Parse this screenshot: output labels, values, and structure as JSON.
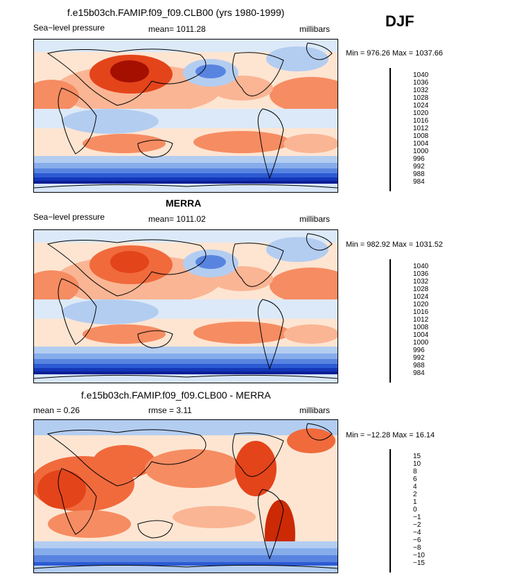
{
  "season": "DJF",
  "panels": [
    {
      "title": "f.e15b03ch.FAMIP.f09_f09.CLB00 (yrs 1980-1999)",
      "left": "Sea−level pressure",
      "center": "mean= 1011.28",
      "right": "millibars",
      "minmax": "Min = 976.26 Max = 1037.66",
      "scale": "slp",
      "colorbar": {
        "labels": [
          "1040",
          "1036",
          "1032",
          "1028",
          "1024",
          "1020",
          "1016",
          "1012",
          "1008",
          "1004",
          "1000",
          "996",
          "992",
          "988",
          "984"
        ],
        "colors": [
          "#7a0000",
          "#a50f00",
          "#cb2a05",
          "#e4441a",
          "#f06a3c",
          "#f68c62",
          "#fab594",
          "#fde5d2",
          "#dce9f8",
          "#b3cdf1",
          "#86acea",
          "#5884e0",
          "#2c5ad3",
          "#1436b8",
          "#0b1e96",
          "#050e6e"
        ]
      }
    },
    {
      "title": "MERRA",
      "left": "Sea−level pressure",
      "center": "mean= 1011.02",
      "right": "millibars",
      "minmax": "Min = 982.92 Max = 1031.52",
      "scale": "slp",
      "colorbar": {
        "labels": [
          "1040",
          "1036",
          "1032",
          "1028",
          "1024",
          "1020",
          "1016",
          "1012",
          "1008",
          "1004",
          "1000",
          "996",
          "992",
          "988",
          "984"
        ],
        "colors": [
          "#7a0000",
          "#a50f00",
          "#cb2a05",
          "#e4441a",
          "#f06a3c",
          "#f68c62",
          "#fab594",
          "#fde5d2",
          "#dce9f8",
          "#b3cdf1",
          "#86acea",
          "#5884e0",
          "#2c5ad3",
          "#1436b8",
          "#0b1e96",
          "#050e6e"
        ]
      }
    },
    {
      "title": "f.e15b03ch.FAMIP.f09_f09.CLB00 - MERRA",
      "left": "mean =    0.26",
      "center": "rmse =    3.11",
      "right": "millibars",
      "minmax": "Min = −12.28 Max =  16.14",
      "scale": "diff",
      "colorbar": {
        "labels": [
          "15",
          "10",
          "8",
          "6",
          "4",
          "2",
          "1",
          "0",
          "−1",
          "−2",
          "−4",
          "−6",
          "−8",
          "−10",
          "−15"
        ],
        "colors": [
          "#7a0000",
          "#a50f00",
          "#cb2a05",
          "#e4441a",
          "#f06a3c",
          "#f68c62",
          "#fab594",
          "#fde5d2",
          "#dce9f8",
          "#b3cdf1",
          "#86acea",
          "#5884e0",
          "#2c5ad3",
          "#1436b8",
          "#0b1e96",
          "#050e6e"
        ]
      }
    }
  ]
}
